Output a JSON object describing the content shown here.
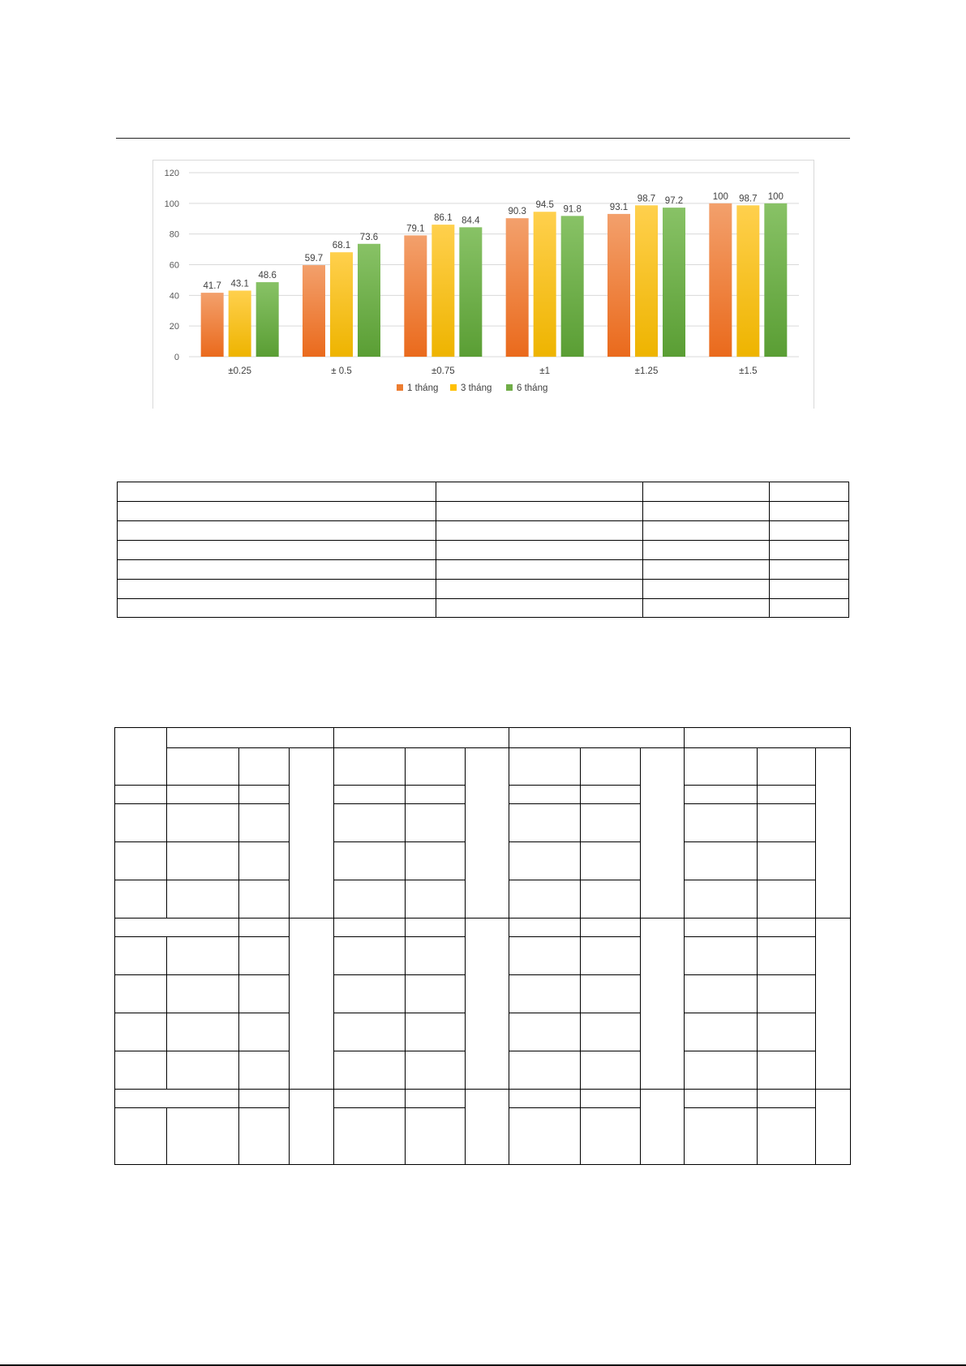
{
  "chart_data": {
    "type": "bar",
    "categories": [
      "±0.25",
      "± 0.5",
      "±0.75",
      "±1",
      "±1.25",
      "±1.5"
    ],
    "series": [
      {
        "name": "1 tháng",
        "values": [
          41.7,
          59.7,
          79.1,
          90.3,
          93.1,
          100
        ],
        "color": "#ed7d31"
      },
      {
        "name": "3 tháng",
        "values": [
          43.1,
          68.1,
          86.1,
          94.5,
          98.7,
          98.7
        ],
        "color": "#ffc000"
      },
      {
        "name": "6 tháng",
        "values": [
          48.6,
          73.6,
          84.4,
          91.8,
          97.2,
          100
        ],
        "color": "#70ad47"
      }
    ],
    "yticks": [
      "0",
      "20",
      "40",
      "60",
      "80",
      "100",
      "120"
    ],
    "ylim": [
      0,
      120
    ],
    "grid": true,
    "legend": "bottom",
    "data_labels": true
  }
}
